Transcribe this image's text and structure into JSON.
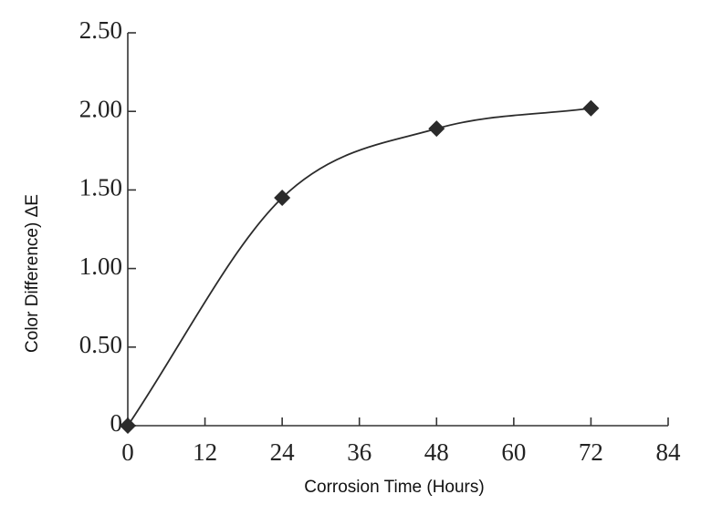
{
  "chart_data": {
    "type": "line",
    "x_label": "Corrosion Time (Hours)",
    "y_label": "Color Difference) ΔE",
    "x": [
      0,
      24,
      48,
      72
    ],
    "series": [
      {
        "color": "#2b2b2b",
        "values": [
          0,
          1.45,
          1.89,
          2.02
        ]
      }
    ],
    "xlim": [
      0,
      84
    ],
    "xticks": [
      0,
      12,
      24,
      36,
      48,
      60,
      72,
      84
    ],
    "ylim": [
      0,
      2.5
    ],
    "yticks": [
      0,
      {
        "value": 0.5,
        "label": "0.50"
      },
      {
        "value": 1,
        "label": "1.00"
      },
      {
        "value": 1.5,
        "label": "1.50"
      },
      {
        "value": 2,
        "label": "2.00"
      },
      {
        "value": 2.5,
        "label": "2.50"
      }
    ],
    "grid": false,
    "marker": "diamond"
  }
}
